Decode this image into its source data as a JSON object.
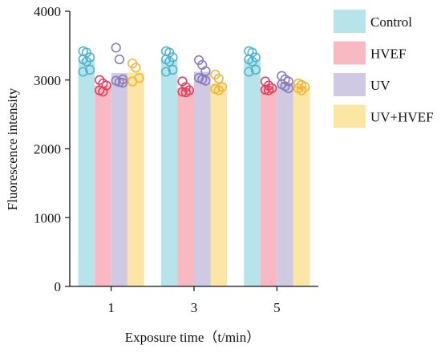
{
  "chart_data": {
    "type": "bar",
    "xlabel": "Exposure time（t/min）",
    "ylabel": "Fluorescence intensity",
    "categories": [
      "1",
      "3",
      "5"
    ],
    "ylim": [
      0,
      4000
    ],
    "yticks": [
      "0",
      "1000",
      "2000",
      "3000",
      "4000"
    ],
    "legend_position": "right",
    "grid": false,
    "series": [
      {
        "name": "Control",
        "color": "#b7e3ea",
        "point_color": "#4fb3cf",
        "values": [
          3300,
          3300,
          3300
        ],
        "points": [
          [
            3420,
            3400,
            3330,
            3300,
            3270,
            3150,
            3120
          ],
          [
            3420,
            3400,
            3330,
            3300,
            3270,
            3150,
            3120
          ],
          [
            3420,
            3400,
            3330,
            3300,
            3270,
            3150,
            3120
          ]
        ]
      },
      {
        "name": "HVEF",
        "color": "#f8b9c3",
        "point_color": "#e0405e",
        "values": [
          2920,
          2880,
          2900
        ],
        "points": [
          [
            3000,
            2950,
            2920,
            2850,
            2830
          ],
          [
            2980,
            2900,
            2850,
            2830,
            2820
          ],
          [
            2980,
            2920,
            2880,
            2860,
            2850
          ]
        ]
      },
      {
        "name": "UV",
        "color": "#cfc9e3",
        "point_color": "#8b7bbd",
        "values": [
          3100,
          3120,
          2960
        ],
        "points": [
          [
            3470,
            3300,
            3010,
            2990,
            2970,
            2960
          ],
          [
            3290,
            3220,
            3130,
            3030,
            3010,
            2990
          ],
          [
            3060,
            3010,
            2980,
            2940,
            2910,
            2880
          ]
        ]
      },
      {
        "name": "UV+HVEF",
        "color": "#fbe6a6",
        "point_color": "#f2b534",
        "values": [
          3110,
          2950,
          2910
        ],
        "points": [
          [
            3240,
            3180,
            3030,
            2980
          ],
          [
            3080,
            3020,
            2900,
            2870,
            2850
          ],
          [
            2950,
            2930,
            2900,
            2880,
            2850
          ]
        ]
      }
    ]
  }
}
